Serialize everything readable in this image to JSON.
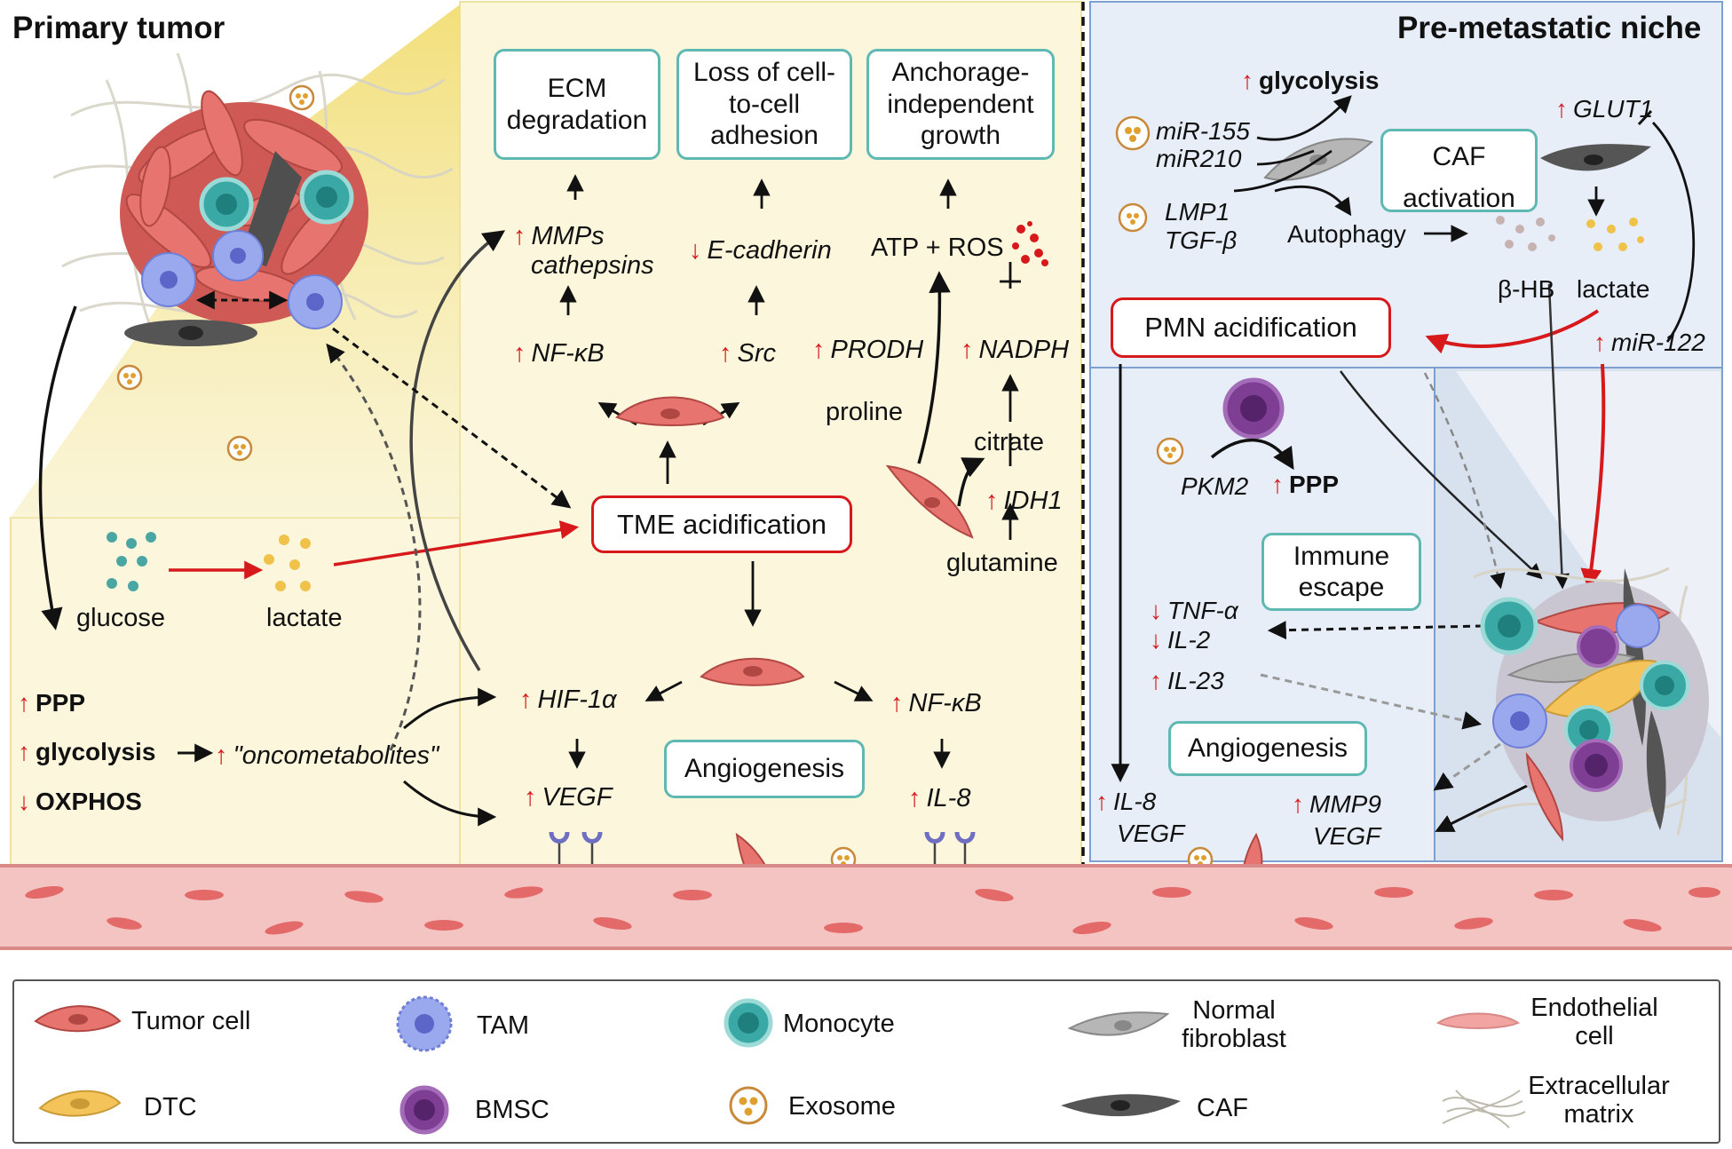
{
  "sections": {
    "primary_tumor": "Primary tumor",
    "pre_metastatic_niche": "Pre-metastatic niche"
  },
  "outcomes": {
    "ecm": "ECM degradation",
    "adhesion": "Loss of cell-to-cell adhesion",
    "anchorage": "Anchorage-independent growth",
    "angiogenesis_left": "Angiogenesis",
    "caf_activation": "CAF activation",
    "pmn_acidification": "PMN acidification",
    "immune_escape": "Immune escape",
    "angiogenesis_right": "Angiogenesis",
    "tme_acidification": "TME acidification"
  },
  "left_labels": {
    "mmps": "MMPs",
    "cathepsins": "cathepsins",
    "e_cadherin": "E-cadherin",
    "atp_ros": "ATP + ROS",
    "nfkb_top": "NF-κB",
    "src": "Src",
    "prodh": "PRODH",
    "nadph": "NADPH",
    "proline": "proline",
    "citrate": "citrate",
    "idh1": "IDH1",
    "glutamine": "glutamine",
    "glucose": "glucose",
    "lactate": "lactate",
    "ppp": "PPP",
    "glycolysis": "glycolysis",
    "oxphos": "OXPHOS",
    "oncometabolites": "\"oncometabolites\"",
    "hif1a": "HIF-1α",
    "vegf": "VEGF",
    "nfkb_bottom": "NF-κB",
    "il8": "IL-8"
  },
  "right_labels": {
    "glycolysis": "glycolysis",
    "mir155": "miR-155",
    "mir210": "miR210",
    "lmp1": "LMP1",
    "tgfb": "TGF-β",
    "autophagy": "Autophagy",
    "glut1": "GLUT1",
    "bhb": "β-HB",
    "lactate": "lactate",
    "mir122": "miR-122",
    "pkm2": "PKM2",
    "ppp": "PPP",
    "tnfa": "TNF-α",
    "il2": "IL-2",
    "il23": "IL-23",
    "il8": "IL-8",
    "vegf_left": "VEGF",
    "mmp9": "MMP9",
    "vegf_right": "VEGF"
  },
  "legend": {
    "tumor_cell": "Tumor cell",
    "tam": "TAM",
    "monocyte": "Monocyte",
    "normal_fibroblast": "Normal fibroblast",
    "endothelial_cell": "Endothelial cell",
    "dtc": "DTC",
    "bmsc": "BMSC",
    "exosome": "Exosome",
    "caf": "CAF",
    "extracellular_matrix": "Extracellular matrix"
  },
  "colors": {
    "up_arrow": "#d7191c",
    "teal_box": "#5fb8b2",
    "red_box": "#d7191c",
    "left_panel_bg": "#fbf6dc",
    "right_panel_bg": "#e7eef8",
    "right_panel_border": "#7ea0d0",
    "tumor_cell": "#e8746f",
    "monocyte": "#3aa9a6",
    "tam": "#9aa8ee",
    "bmsc": "#7d3e93",
    "dtc": "#f4c35a",
    "caf": "#555555",
    "normal_fibroblast": "#b6b6b6",
    "endothelium": "#f2b6b4",
    "exosome": "#e0a030"
  },
  "icons": [
    "tumor-cell-icon",
    "tam-icon",
    "monocyte-icon",
    "normal-fibroblast-icon",
    "endothelial-cell-icon",
    "dtc-icon",
    "bmsc-icon",
    "exosome-icon",
    "caf-icon",
    "extracellular-matrix-icon"
  ]
}
